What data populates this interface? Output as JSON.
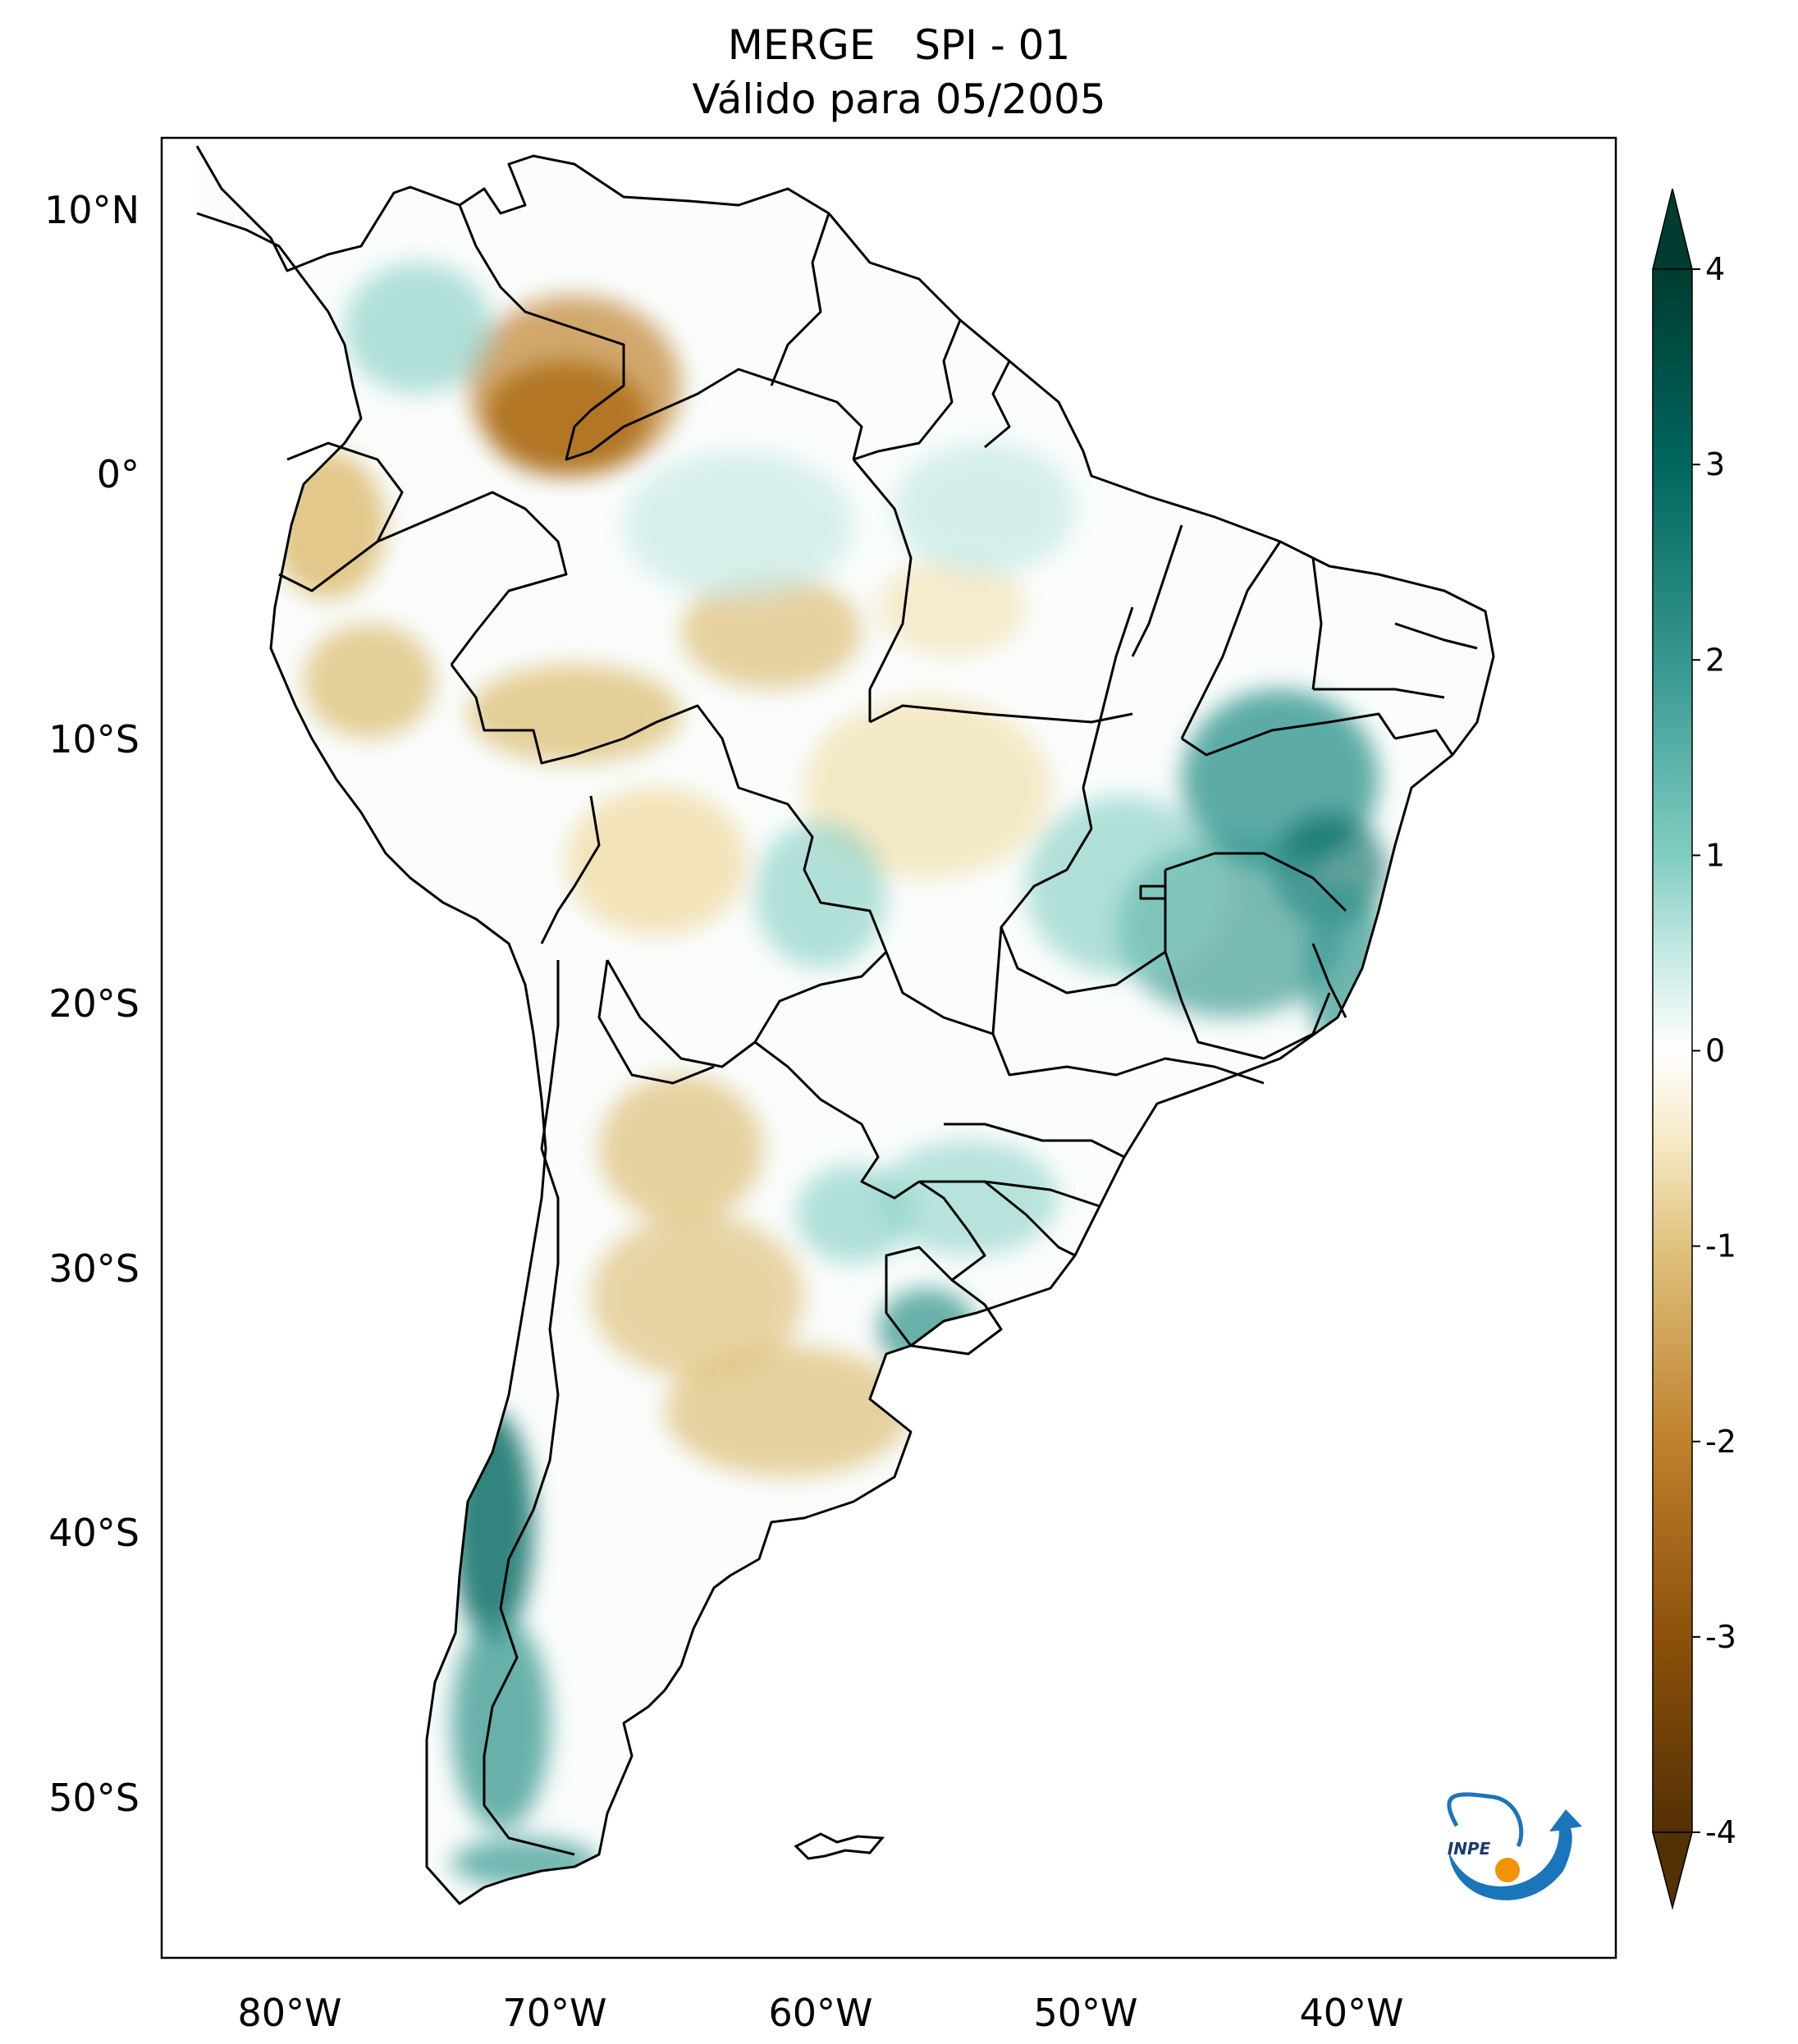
{
  "title": {
    "line1": "MERGE   SPI - 01",
    "line2": "Válido para 05/2005"
  },
  "map": {
    "lat_labels": [
      "10°N",
      "0°",
      "10°S",
      "20°S",
      "30°S",
      "40°S",
      "50°S"
    ],
    "lon_labels": [
      "80°W",
      "70°W",
      "60°W",
      "50°W",
      "40°W"
    ]
  },
  "colorbar": {
    "ticks": [
      "4",
      "3",
      "2",
      "1",
      "0",
      "-1",
      "-2",
      "-3",
      "-4"
    ],
    "colors": {
      "max": "#003c30",
      "high": "#01665e",
      "mid_high": "#35978f",
      "low_high": "#80cdc1",
      "pale_high": "#c7eae5",
      "zero": "#ffffff",
      "pale_low": "#f6e8c3",
      "low_low": "#dfc27d",
      "mid_low": "#bf812d",
      "low": "#8c510a",
      "min": "#543005"
    }
  },
  "logo": {
    "text": "INPE"
  }
}
